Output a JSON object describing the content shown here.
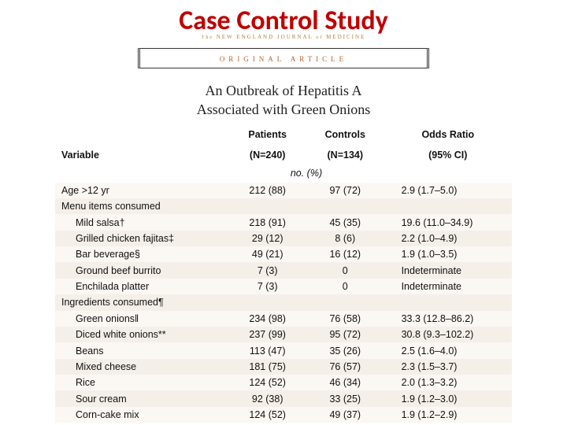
{
  "slide": {
    "title": "Case Control Study"
  },
  "journal": {
    "prefix": "The",
    "name_a": "NEW ENGLAND JOURNAL",
    "of": "of",
    "name_b": "MEDICINE"
  },
  "original": {
    "label": "ORIGINAL ARTICLE"
  },
  "article": {
    "title_line1": "An Outbreak of Hepatitis A",
    "title_line2": "Associated with Green Onions"
  },
  "table": {
    "headers": {
      "variable": "Variable",
      "patients": "Patients",
      "patients_n": "(N=240)",
      "controls": "Controls",
      "controls_n": "(N=134)",
      "odds": "Odds Ratio",
      "ci": "(95% CI)"
    },
    "unit": "no. (%)",
    "rows": [
      {
        "label": "Age >12 yr",
        "indent": false,
        "p": "212 (88)",
        "c": "97 (72)",
        "or": "2.9 (1.7–5.0)",
        "alt": true
      },
      {
        "label": "Menu items consumed",
        "indent": false,
        "p": "",
        "c": "",
        "or": "",
        "alt": false
      },
      {
        "label": "Mild salsa†",
        "indent": true,
        "p": "218 (91)",
        "c": "45 (35)",
        "or": "19.6 (11.0–34.9)",
        "alt": true
      },
      {
        "label": "Grilled chicken fajitas‡",
        "indent": true,
        "p": "29 (12)",
        "c": "8 (6)",
        "or": "2.2 (1.0–4.9)",
        "alt": false
      },
      {
        "label": "Bar beverage§",
        "indent": true,
        "p": "49 (21)",
        "c": "16 (12)",
        "or": "1.9 (1.0–3.5)",
        "alt": true
      },
      {
        "label": "Ground beef burrito",
        "indent": true,
        "p": "7 (3)",
        "c": "0",
        "or": "Indeterminate",
        "alt": false
      },
      {
        "label": "Enchilada platter",
        "indent": true,
        "p": "7 (3)",
        "c": "0",
        "or": "Indeterminate",
        "alt": true
      },
      {
        "label": "Ingredients consumed¶",
        "indent": false,
        "p": "",
        "c": "",
        "or": "",
        "alt": false
      },
      {
        "label": "Green onions‖",
        "indent": true,
        "p": "234 (98)",
        "c": "76 (58)",
        "or": "33.3 (12.8–86.2)",
        "alt": true
      },
      {
        "label": "Diced white onions**",
        "indent": true,
        "p": "237 (99)",
        "c": "95 (72)",
        "or": "30.8 (9.3–102.2)",
        "alt": false
      },
      {
        "label": "Beans",
        "indent": true,
        "p": "113 (47)",
        "c": "35 (26)",
        "or": "2.5 (1.6–4.0)",
        "alt": true
      },
      {
        "label": "Mixed cheese",
        "indent": true,
        "p": "181 (75)",
        "c": "76 (57)",
        "or": "2.3 (1.5–3.7)",
        "alt": false
      },
      {
        "label": "Rice",
        "indent": true,
        "p": "124 (52)",
        "c": "46 (34)",
        "or": "2.0 (1.3–3.2)",
        "alt": true
      },
      {
        "label": "Sour cream",
        "indent": true,
        "p": "92 (38)",
        "c": "33 (25)",
        "or": "1.9 (1.2–3.0)",
        "alt": false
      },
      {
        "label": "Corn-cake mix",
        "indent": true,
        "p": "124 (52)",
        "c": "49 (37)",
        "or": "1.9 (1.2–2.9)",
        "alt": true
      }
    ]
  },
  "colors": {
    "title": "#c00000",
    "journal": "#b08040",
    "orig": "#b86030",
    "row_alt": "#fbf7f3",
    "row_plain": "#f5efe9"
  }
}
